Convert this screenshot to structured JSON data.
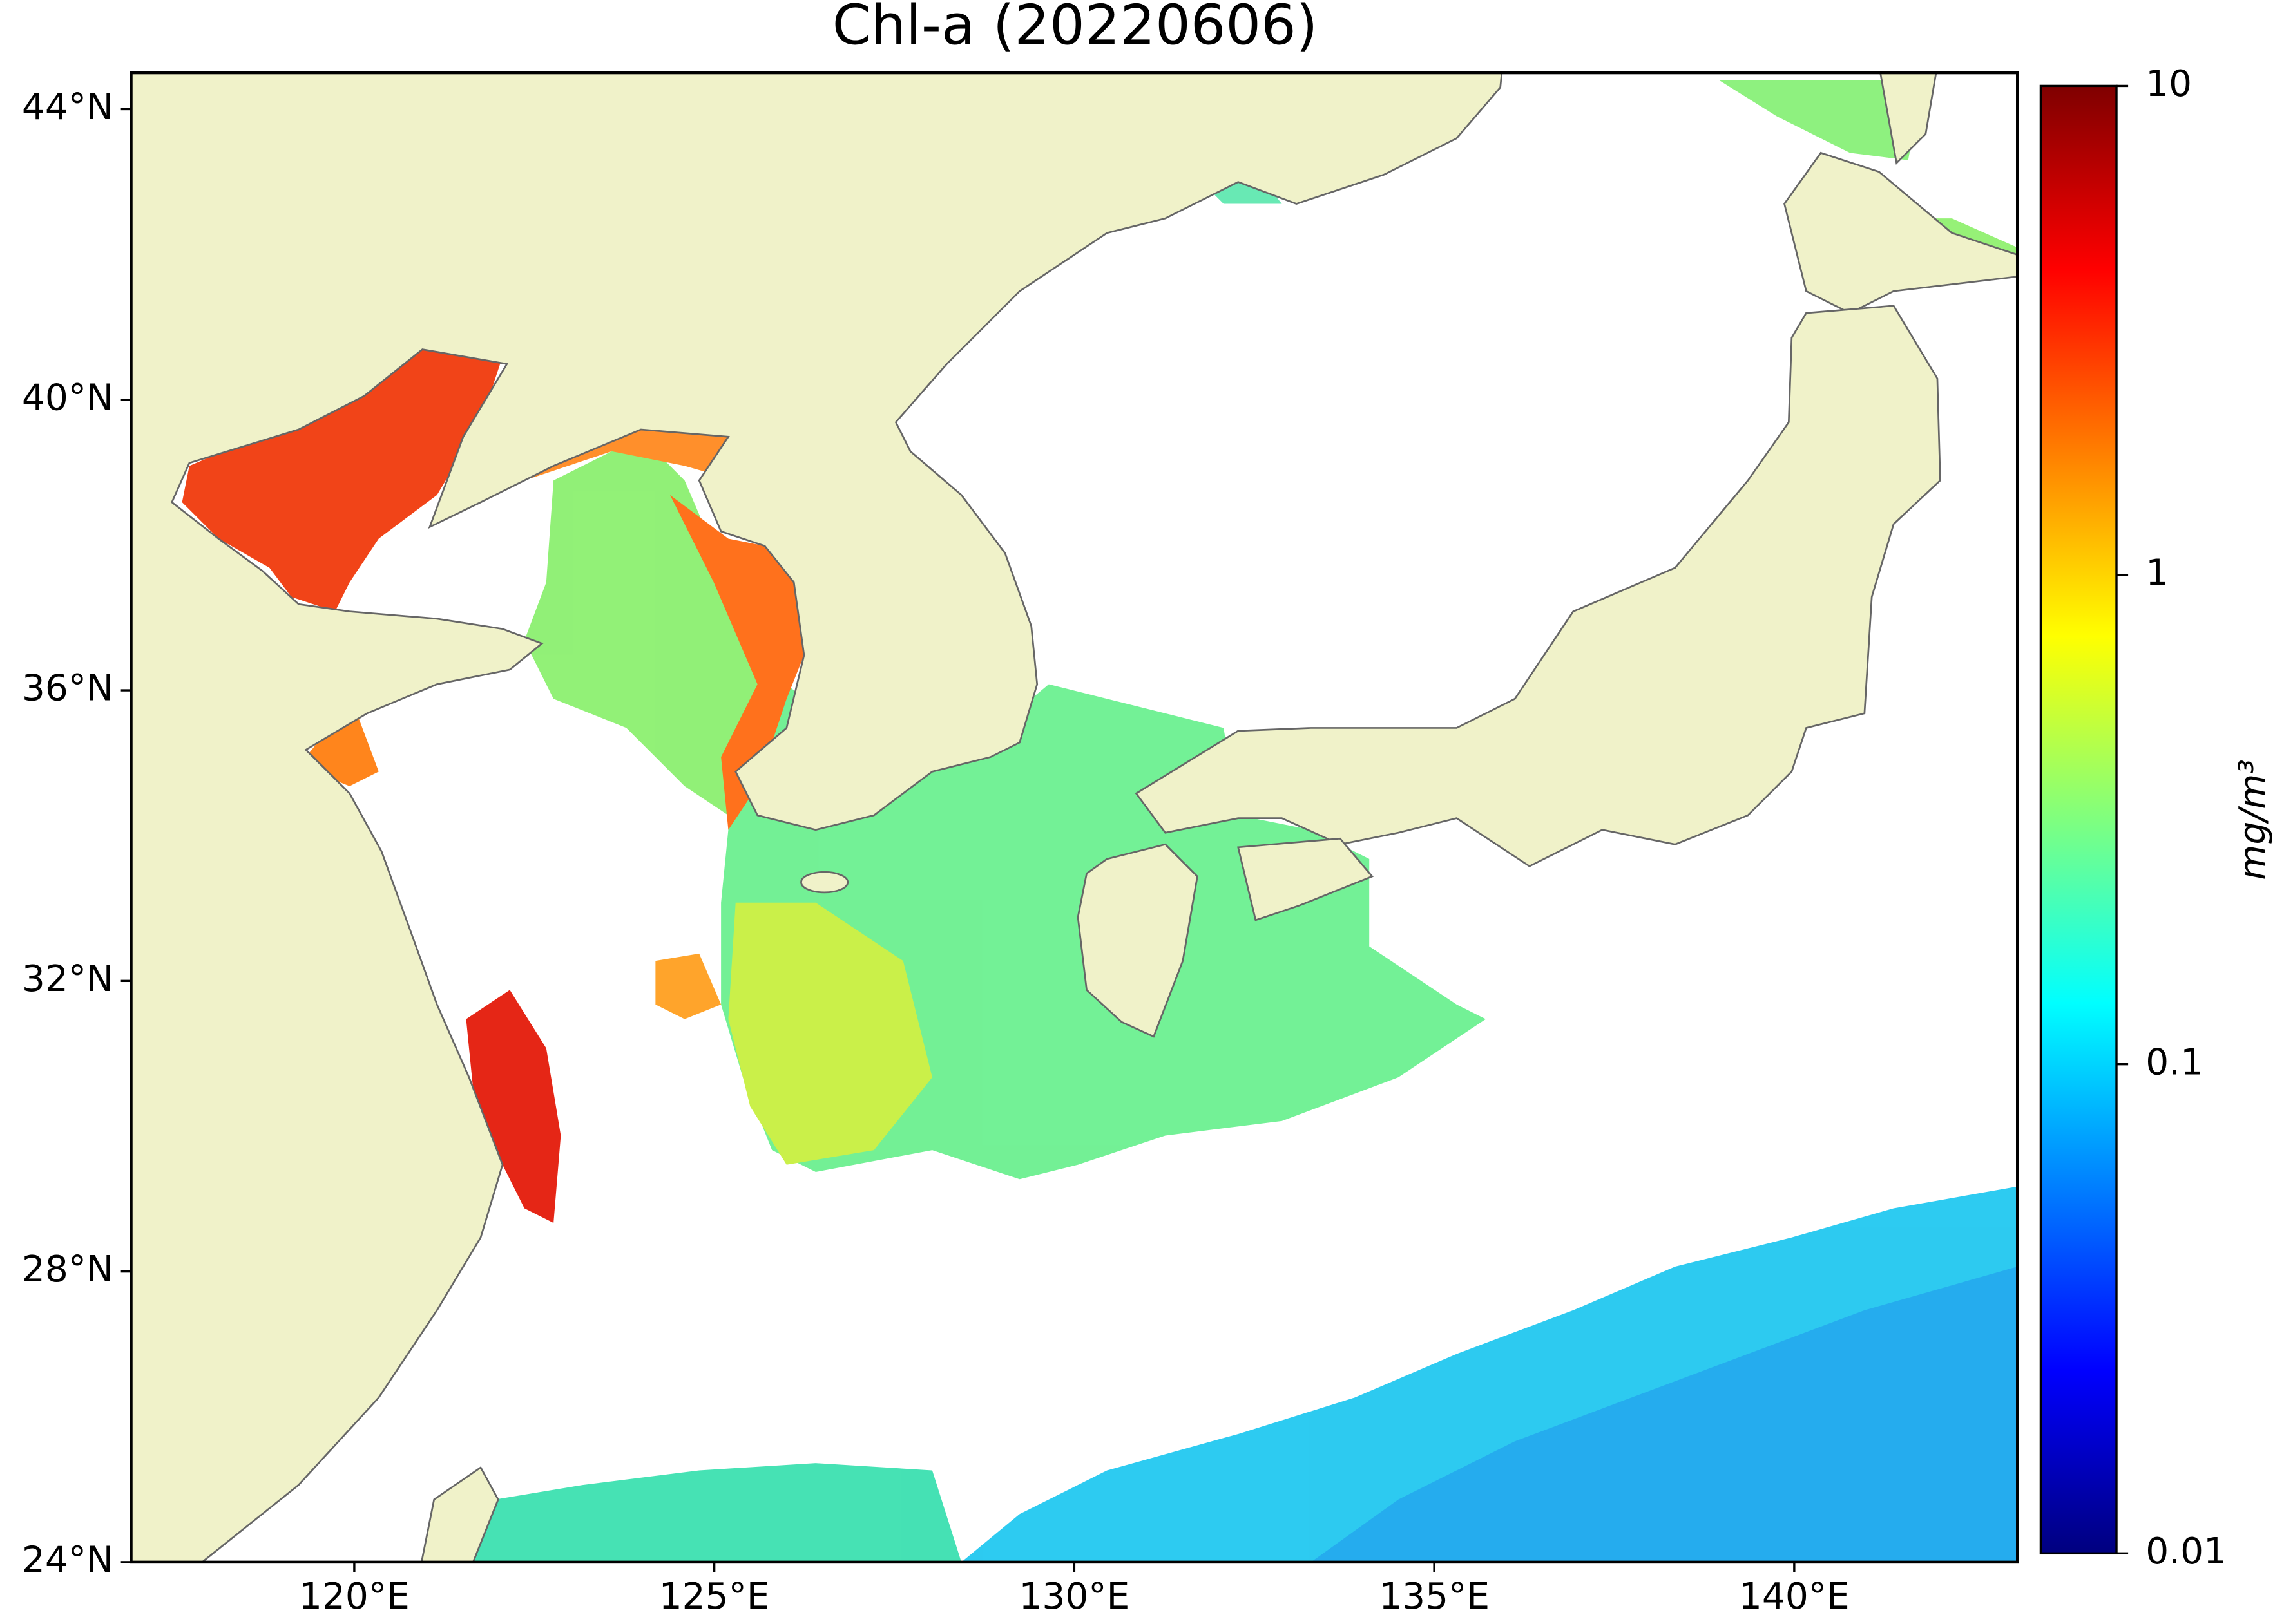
{
  "chart_data": {
    "type": "map",
    "title": "Chl-a (20220606)",
    "xlim": [
      116.9,
      143.1
    ],
    "ylim": [
      24,
      44.5
    ],
    "xticks": [
      {
        "value": 120,
        "label": "120°E"
      },
      {
        "value": 125,
        "label": "125°E"
      },
      {
        "value": 130,
        "label": "130°E"
      },
      {
        "value": 135,
        "label": "135°E"
      },
      {
        "value": 140,
        "label": "140°E"
      }
    ],
    "yticks": [
      {
        "value": 24,
        "label": "24°N"
      },
      {
        "value": 28,
        "label": "28°N"
      },
      {
        "value": 32,
        "label": "32°N"
      },
      {
        "value": 36,
        "label": "36°N"
      },
      {
        "value": 40,
        "label": "40°N"
      },
      {
        "value": 44,
        "label": "44°N"
      }
    ],
    "colorbar": {
      "label": "mg/m³",
      "scale": "log",
      "lim": [
        0.01,
        10
      ],
      "ticks": [
        0.01,
        0.1,
        1,
        10
      ],
      "colormap": [
        "#00007f",
        "#0000ff",
        "#007fff",
        "#00ffff",
        "#7fff7f",
        "#ffff00",
        "#ff7f00",
        "#ff0000",
        "#7f0000"
      ]
    },
    "land_color": "#f0f2c9",
    "coast_color": "#666666"
  }
}
